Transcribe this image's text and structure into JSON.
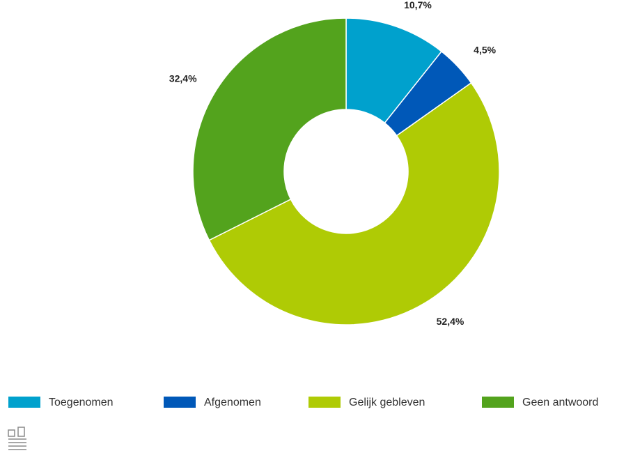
{
  "chart_data": {
    "type": "donut",
    "categories": [
      "Toegenomen",
      "Afgenomen",
      "Gelijk gebleven",
      "Geen antwoord"
    ],
    "values": [
      10.7,
      4.5,
      52.4,
      32.4
    ],
    "value_labels": [
      "10,7%",
      "4,5%",
      "52,4%",
      "32,4%"
    ],
    "colors": [
      "#00a1cd",
      "#0058b8",
      "#afcb05",
      "#53a31d"
    ]
  }
}
